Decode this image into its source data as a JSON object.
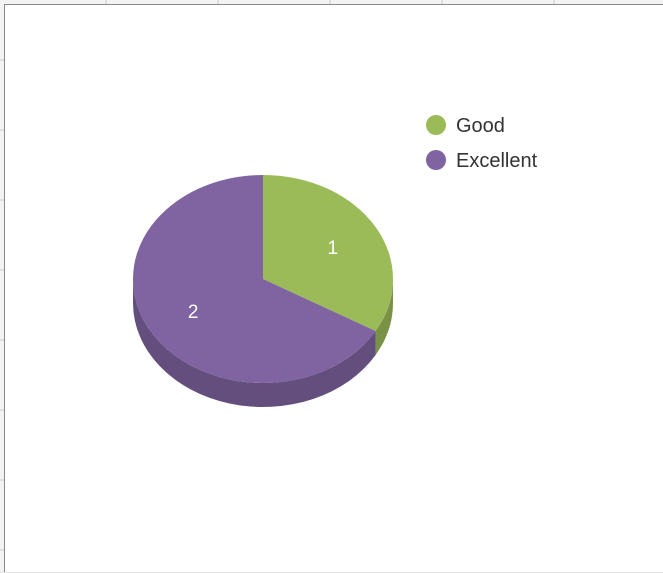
{
  "chart_data": {
    "type": "pie",
    "categories": [
      "Good",
      "Excellent"
    ],
    "values": [
      1,
      2
    ],
    "data_labels": [
      "1",
      "2"
    ],
    "colors": [
      "#9bbb59",
      "#8064a2"
    ],
    "legend": {
      "position": "top-right",
      "entries": [
        "Good",
        "Excellent"
      ]
    },
    "style": "3d"
  }
}
